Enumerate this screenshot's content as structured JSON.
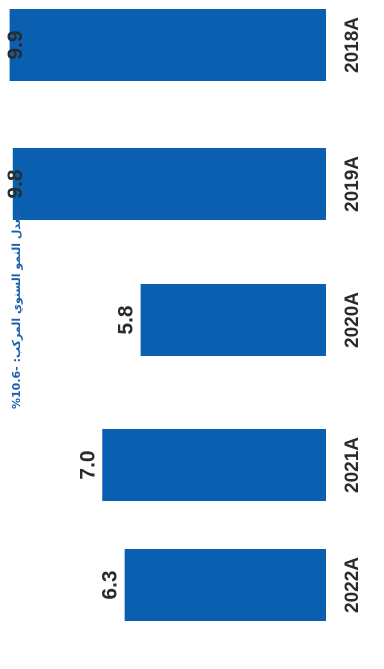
{
  "chart_data": {
    "type": "bar",
    "orientation": "rotated-90",
    "categories": [
      "2022A",
      "2021A",
      "2020A",
      "2019A",
      "2018A"
    ],
    "values": [
      6.3,
      7.0,
      5.8,
      9.8,
      9.9
    ],
    "value_labels": [
      "6.3",
      "7.0",
      "5.8",
      "9.8",
      "9.9"
    ],
    "annotation": "معدل النمو السنوي المركب: -10.6%",
    "title": "",
    "xlabel": "",
    "ylabel": "",
    "ylim": [
      0,
      10.2
    ],
    "grid": false,
    "bar_color": "#0a5fb0"
  }
}
